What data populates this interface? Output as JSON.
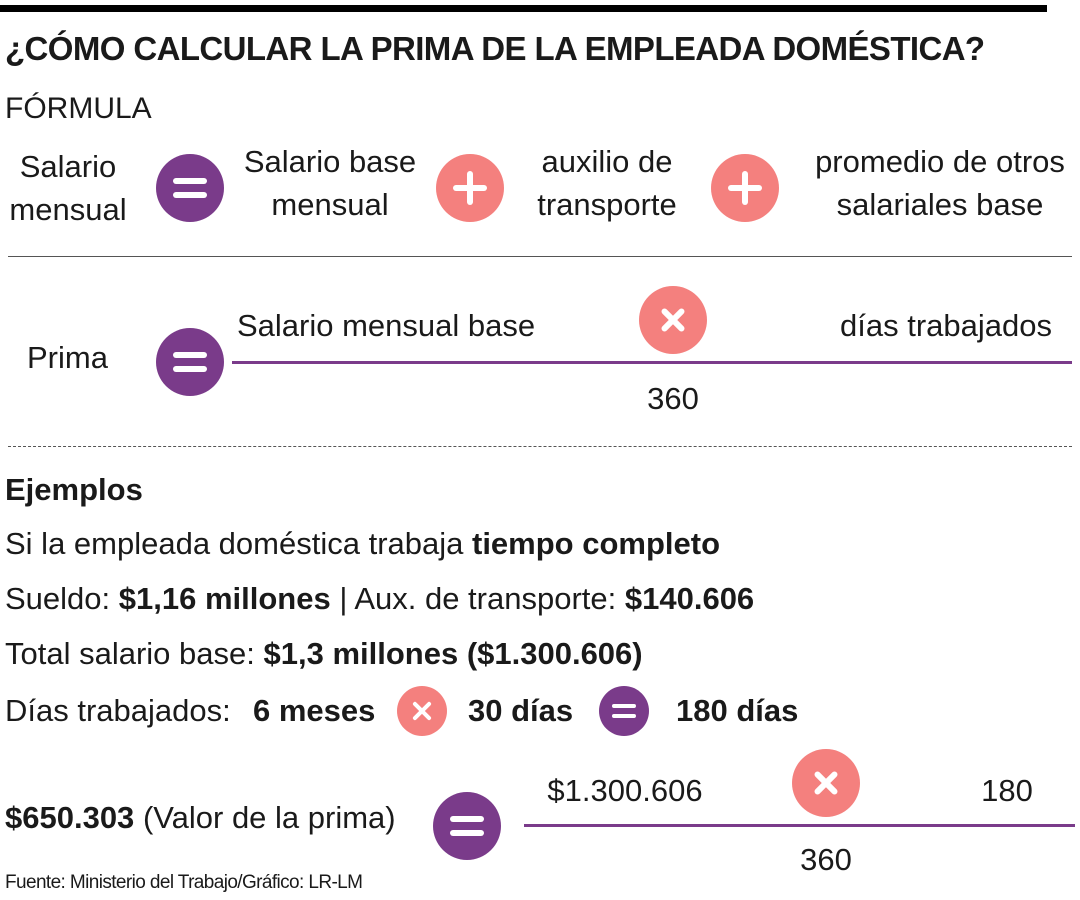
{
  "header": {
    "title": "¿CÓMO CALCULAR LA PRIMA DE LA EMPLEADA DOMÉSTICA?",
    "subtitle": "FÓRMULA"
  },
  "formula1": {
    "result": "Salario mensual",
    "terms": [
      "Salario base mensual",
      "auxilio de transporte",
      "promedio de otros salariales base"
    ]
  },
  "formula2": {
    "result": "Prima",
    "numerator_left": "Salario mensual base",
    "numerator_right": "días trabajados",
    "denominator": "360"
  },
  "examples": {
    "heading": "Ejemplos",
    "intro": {
      "text": "Si la empleada doméstica trabaja",
      "emphasis": "tiempo completo"
    },
    "salary": {
      "label": "Sueldo:",
      "value": "$1,16 millones",
      "separator": "|",
      "label2": "Aux. de transporte:",
      "value2": "$140.606"
    },
    "total": {
      "label": "Total salario base:",
      "value": "$1,3 millones ($1.300.606)"
    },
    "days": {
      "label": "Días trabajados:",
      "factor1": "6 meses",
      "factor2": "30 días",
      "result": "180 días"
    },
    "result": {
      "value": "$650.303",
      "label": "(Valor de la prima)",
      "numerator_left": "$1.300.606",
      "numerator_right": "180",
      "denominator": "360"
    }
  },
  "source": "Fuente: Ministerio del Trabajo/Gráfico: LR-LM"
}
